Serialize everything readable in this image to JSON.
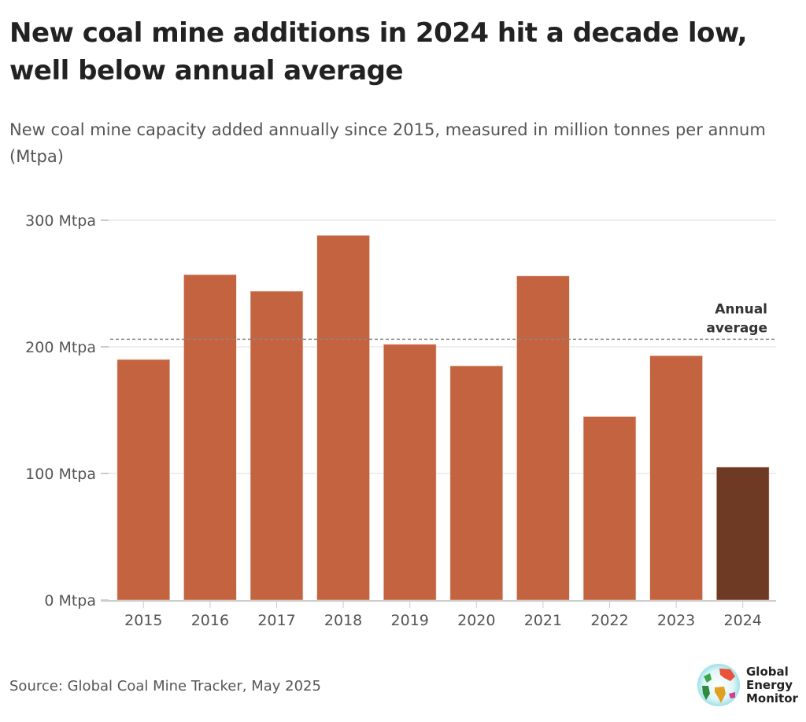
{
  "title": "New coal mine additions in 2024 hit a decade low, well below annual average",
  "subtitle": "New coal mine capacity added annually since 2015, measured in million tonnes per annum (Mtpa)",
  "source": "Source: Global Coal Mine Tracker, May 2025",
  "logo": {
    "name": "Global Energy Monitor",
    "lines": [
      "Global",
      "Energy",
      "Monitor"
    ]
  },
  "colors": {
    "bar": "#c46340",
    "highlight_bar": "#6e3a24",
    "grid": "#dddddd",
    "average_line": "#888888",
    "text": "#555555"
  },
  "chart_data": {
    "type": "bar",
    "title": "New coal mine additions in 2024 hit a decade low, well below annual average",
    "xlabel": "",
    "ylabel": "",
    "categories": [
      "2015",
      "2016",
      "2017",
      "2018",
      "2019",
      "2020",
      "2021",
      "2022",
      "2023",
      "2024"
    ],
    "values": [
      190,
      257,
      244,
      288,
      202,
      185,
      256,
      145,
      193,
      105
    ],
    "highlight": "2024",
    "unit": "Mtpa",
    "ylim": [
      0,
      300
    ],
    "yticks": [
      0,
      100,
      200,
      300
    ],
    "ytick_labels": [
      "0 Mtpa",
      "100 Mtpa",
      "200 Mtpa",
      "300 Mtpa"
    ],
    "grid": true,
    "reference_line": {
      "label_lines": [
        "Annual",
        "average"
      ],
      "value": 206,
      "style": "dashed"
    }
  }
}
